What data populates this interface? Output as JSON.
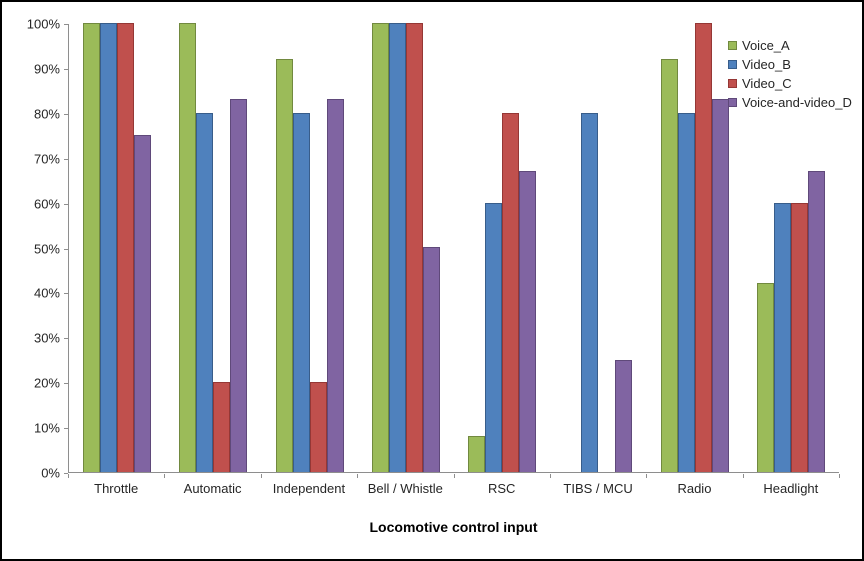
{
  "chart_data": {
    "type": "bar",
    "title": "",
    "xlabel": "Locomotive control input",
    "ylabel": "",
    "ylim": [
      0,
      100
    ],
    "y_tick_step": 10,
    "y_ticks": [
      "100%",
      "90%",
      "80%",
      "70%",
      "60%",
      "50%",
      "40%",
      "30%",
      "20%",
      "10%",
      "0%"
    ],
    "grid": false,
    "legend_position": "top-right",
    "categories": [
      "Throttle",
      "Automatic",
      "Independent",
      "Bell / Whistle",
      "RSC",
      "TIBS / MCU",
      "Radio",
      "Headlight"
    ],
    "series": [
      {
        "name": "Voice_A",
        "color": "#9BBB59",
        "border_color": "#71893F",
        "values": [
          100,
          100,
          92,
          100,
          8,
          0,
          92,
          42
        ]
      },
      {
        "name": "Video_B",
        "color": "#4F81BD",
        "border_color": "#385D8A",
        "values": [
          100,
          80,
          80,
          100,
          60,
          80,
          80,
          60
        ]
      },
      {
        "name": "Video_C",
        "color": "#C0504D",
        "border_color": "#953735",
        "values": [
          100,
          20,
          20,
          100,
          80,
          0,
          100,
          60
        ]
      },
      {
        "name": "Voice-and-video_D",
        "color": "#8064A2",
        "border_color": "#5F497A",
        "values": [
          75,
          83,
          83,
          50,
          67,
          25,
          83,
          67
        ]
      }
    ]
  },
  "colors": {
    "axis": "#8e8e8e",
    "text": "#262626",
    "frame": "#000000",
    "background": "#FFFFFF"
  }
}
